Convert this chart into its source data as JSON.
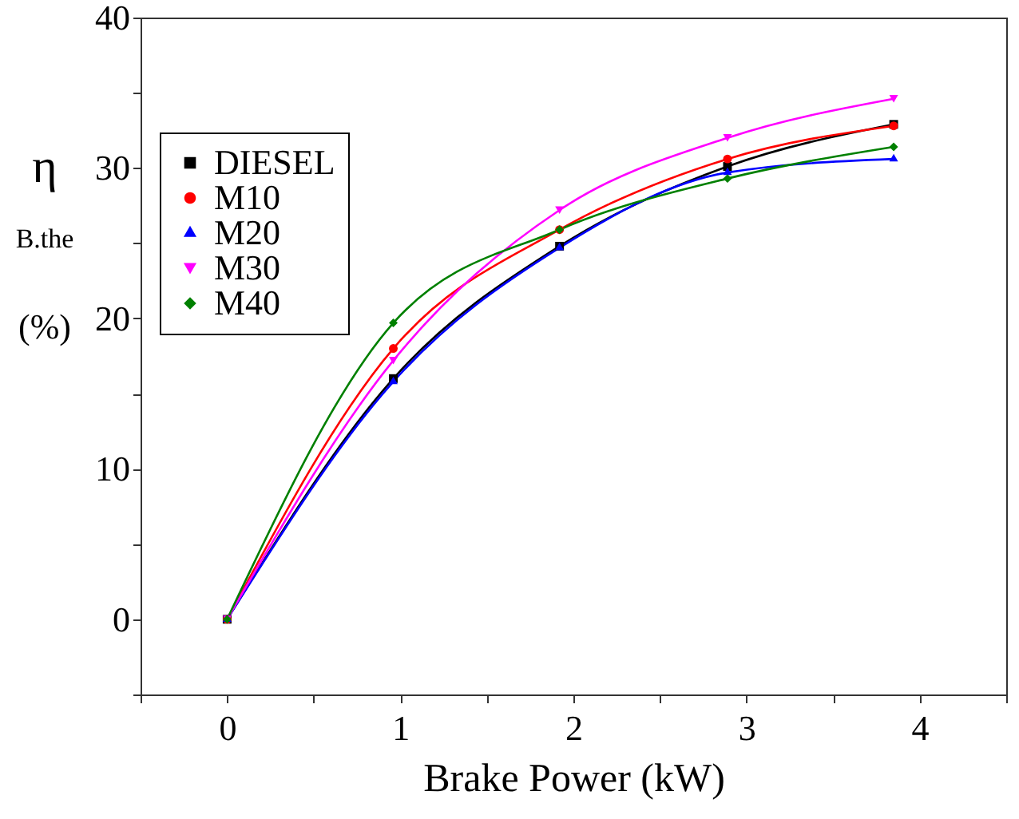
{
  "chart_data": {
    "type": "line",
    "xlabel": "Brake Power (kW)",
    "ylabel": "η$_{B.the}$ (%)",
    "x": [
      0,
      0.96,
      1.92,
      2.89,
      3.85
    ],
    "series": [
      {
        "name": "DIESEL",
        "color": "#000000",
        "marker": "square",
        "values": [
          0,
          16.0,
          24.8,
          30.1,
          32.9
        ]
      },
      {
        "name": "M10",
        "color": "#ff0000",
        "marker": "circle",
        "values": [
          0,
          18.0,
          25.9,
          30.6,
          32.8
        ]
      },
      {
        "name": "M20",
        "color": "#0000ff",
        "marker": "triangle",
        "values": [
          0,
          15.8,
          24.7,
          29.7,
          30.6
        ]
      },
      {
        "name": "M30",
        "color": "#ff00ff",
        "marker": "triangle-down",
        "values": [
          0,
          17.2,
          27.2,
          32.0,
          34.6
        ]
      },
      {
        "name": "M40",
        "color": "#008000",
        "marker": "diamond",
        "values": [
          0,
          19.7,
          25.9,
          29.3,
          31.4
        ]
      }
    ],
    "xlim": [
      -0.5,
      4.5
    ],
    "xticks": [
      {
        "value": -0.5,
        "label": null
      },
      0,
      {
        "value": 0.5,
        "label": null
      },
      1,
      {
        "value": 1.5,
        "label": null
      },
      2,
      {
        "value": 2.5,
        "label": null
      },
      3,
      {
        "value": 3.5,
        "label": null
      },
      4,
      {
        "value": 4.5,
        "label": null
      }
    ],
    "ylim": [
      -5,
      40
    ],
    "yticks": [
      {
        "value": -5,
        "label": null
      },
      0,
      {
        "value": 5,
        "label": null
      },
      10,
      {
        "value": 15,
        "label": null
      },
      20,
      {
        "value": 25,
        "label": null
      },
      30,
      {
        "value": 35,
        "label": null
      },
      40
    ],
    "grid": false,
    "legend": "top left",
    "line_style": "solid"
  }
}
